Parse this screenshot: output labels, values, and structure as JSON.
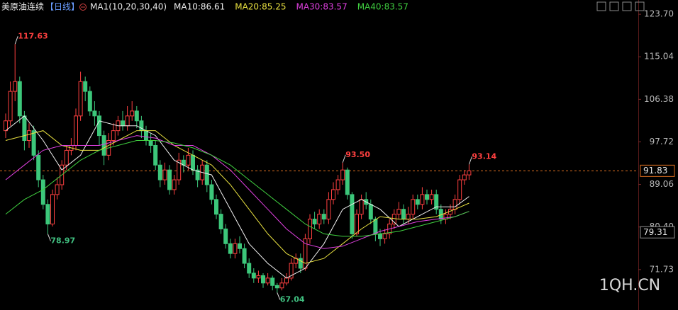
{
  "chart_data": {
    "type": "candlestick",
    "title": "美原油连续",
    "period": "【日线】",
    "indicator": "MA1(10,20,30,40)",
    "watermark": "1QH.CN",
    "ylim": [
      63.5,
      126.6
    ],
    "yticks": [
      {
        "value": 123.7,
        "label": "123.70"
      },
      115.04,
      106.38,
      97.72,
      89.06,
      {
        "value": 80.4,
        "label": "80.40"
      },
      71.73
    ],
    "up_color": "#ff4040",
    "down_color": "#3cc77a",
    "ohlc": [
      [
        100,
        103.5,
        98.5,
        102
      ],
      [
        102,
        110,
        101,
        108
      ],
      [
        108,
        117.63,
        106,
        110
      ],
      [
        110,
        111,
        101.5,
        103
      ],
      [
        103,
        104,
        96,
        98
      ],
      [
        98,
        101.5,
        96.5,
        100
      ],
      [
        100,
        101,
        94,
        95
      ],
      [
        95,
        96,
        88.5,
        90
      ],
      [
        90,
        91,
        84,
        85
      ],
      [
        85,
        86,
        78.97,
        81
      ],
      [
        81,
        88,
        80.5,
        87
      ],
      [
        87,
        90.5,
        86,
        89
      ],
      [
        89,
        94,
        88,
        93
      ],
      [
        93,
        97,
        92,
        96
      ],
      [
        96,
        98.5,
        95,
        97
      ],
      [
        97,
        104.5,
        96,
        103
      ],
      [
        103,
        112,
        102,
        110
      ],
      [
        110,
        111,
        106,
        108
      ],
      [
        108,
        109,
        103,
        104
      ],
      [
        104,
        106,
        101,
        103
      ],
      [
        103,
        104,
        97,
        99
      ],
      [
        99,
        100,
        93,
        95
      ],
      [
        95,
        99.5,
        94,
        98
      ],
      [
        98,
        101.5,
        97,
        100
      ],
      [
        100,
        103,
        99,
        102
      ],
      [
        102,
        104,
        100,
        101
      ],
      [
        101,
        105,
        100,
        103
      ],
      [
        103,
        106,
        102,
        104
      ],
      [
        104,
        105,
        100.5,
        102
      ],
      [
        102,
        103,
        98.5,
        100
      ],
      [
        100,
        101,
        97,
        98
      ],
      [
        98,
        99.5,
        95.5,
        97
      ],
      [
        97,
        98,
        92,
        93
      ],
      [
        93,
        94,
        88.5,
        90
      ],
      [
        90,
        93.5,
        89,
        92
      ],
      [
        92,
        93,
        87,
        88
      ],
      [
        88,
        91,
        87,
        90
      ],
      [
        90,
        95.5,
        89,
        94
      ],
      [
        94,
        95,
        91.5,
        93
      ],
      [
        93,
        96.5,
        92,
        95
      ],
      [
        95,
        96,
        91,
        92
      ],
      [
        92,
        93,
        88.5,
        90
      ],
      [
        90,
        94,
        89,
        93
      ],
      [
        93,
        94,
        87.5,
        89
      ],
      [
        89,
        90,
        85,
        86
      ],
      [
        86,
        87,
        82,
        83
      ],
      [
        83,
        84,
        79,
        80
      ],
      [
        80,
        81,
        76,
        77
      ],
      [
        77,
        78,
        74,
        75
      ],
      [
        75,
        78,
        74,
        77
      ],
      [
        77,
        78.5,
        75,
        76
      ],
      [
        76,
        77,
        72,
        73
      ],
      [
        73,
        74,
        70,
        71
      ],
      [
        71,
        72,
        69,
        70
      ],
      [
        70,
        71.5,
        69,
        70.5
      ],
      [
        70.5,
        71,
        68,
        69
      ],
      [
        69,
        71,
        68.5,
        70
      ],
      [
        70,
        70.5,
        67.5,
        68.5
      ],
      [
        68.5,
        69,
        67.04,
        68
      ],
      [
        68,
        70,
        67.5,
        69
      ],
      [
        69,
        71,
        68.5,
        70
      ],
      [
        70,
        74,
        69.5,
        73
      ],
      [
        73,
        75,
        72,
        74
      ],
      [
        74,
        75,
        71,
        72
      ],
      [
        72,
        79,
        71.5,
        78
      ],
      [
        78,
        83,
        77,
        82
      ],
      [
        82,
        83.5,
        80,
        81
      ],
      [
        81,
        84,
        80,
        83
      ],
      [
        83,
        84,
        81,
        82
      ],
      [
        82,
        87.5,
        81,
        86
      ],
      [
        86,
        89.5,
        85,
        88
      ],
      [
        88,
        91,
        87,
        90
      ],
      [
        90,
        93.5,
        89,
        92
      ],
      [
        92,
        92.5,
        86,
        87
      ],
      [
        87,
        87.5,
        78,
        79
      ],
      [
        79,
        84,
        78.5,
        83
      ],
      [
        83,
        87,
        82,
        86
      ],
      [
        86,
        87.5,
        84,
        85
      ],
      [
        85,
        86,
        81,
        82
      ],
      [
        82,
        82.5,
        77.5,
        79
      ],
      [
        79,
        80,
        76.5,
        78
      ],
      [
        78,
        80,
        77,
        79
      ],
      [
        79,
        82,
        78,
        81
      ],
      [
        81,
        84,
        80,
        83
      ],
      [
        83,
        85.5,
        82,
        84
      ],
      [
        84,
        85,
        81,
        82
      ],
      [
        82,
        84.5,
        81,
        83
      ],
      [
        83,
        87,
        82,
        86
      ],
      [
        86,
        87,
        84,
        85
      ],
      [
        85,
        88.5,
        84,
        87
      ],
      [
        87,
        88,
        85,
        86
      ],
      [
        86,
        88,
        85,
        87
      ],
      [
        87,
        88,
        83,
        84
      ],
      [
        84,
        85,
        81,
        82
      ],
      [
        82,
        84,
        81,
        83
      ],
      [
        83,
        85,
        82,
        84
      ],
      [
        84,
        87,
        83,
        86
      ],
      [
        86,
        91,
        85,
        90
      ],
      [
        90,
        92,
        89,
        91
      ],
      [
        91,
        93.14,
        90,
        91.83
      ]
    ],
    "extreme_labels": [
      {
        "value": 117.63,
        "label": "117.63",
        "x": 2
      },
      {
        "value": 78.97,
        "label": "78.97",
        "x": 9
      },
      {
        "value": 67.04,
        "label": "67.04",
        "x": 58
      },
      {
        "value": 93.5,
        "label": "93.50",
        "x": 72
      },
      {
        "value": 93.14,
        "label": "93.14",
        "x": 99
      }
    ],
    "ma_x": [
      0,
      4,
      8,
      12,
      16,
      20,
      24,
      28,
      32,
      36,
      40,
      44,
      48,
      52,
      56,
      60,
      64,
      68,
      72,
      76,
      80,
      84,
      88,
      92,
      96,
      99
    ],
    "series": [
      {
        "name": "MA10:86.61",
        "color": "#f0f0f0",
        "values": [
          100,
          103,
          98,
          92,
          95,
          102,
          101,
          101,
          99,
          94,
          92,
          91,
          84,
          77,
          73,
          70,
          72,
          77,
          84,
          86,
          84,
          80.5,
          82.5,
          84.5,
          84.5,
          86.61
        ]
      },
      {
        "name": "MA20:85.25",
        "color": "#e8e040",
        "values": [
          98,
          99,
          100,
          97,
          96,
          96,
          98,
          100,
          100,
          97,
          95,
          93,
          89,
          84,
          79,
          75,
          73,
          74,
          77,
          80,
          82.5,
          82,
          82,
          82.5,
          84,
          85.25
        ]
      },
      {
        "name": "MA30:83.57",
        "color": "#e040e0",
        "values": [
          90,
          93,
          96,
          97,
          97,
          97,
          98,
          99,
          98.5,
          97,
          97,
          95,
          92,
          88,
          84,
          80,
          77,
          76,
          76.5,
          78,
          79.5,
          80.5,
          81.5,
          82,
          82.5,
          83.57
        ]
      },
      {
        "name": "MA40:83.57",
        "color": "#40d040",
        "values": [
          83,
          86,
          88,
          91,
          94,
          96,
          97,
          98,
          98,
          97.5,
          96.5,
          95,
          93,
          90,
          87,
          84,
          81,
          79,
          78.5,
          78.5,
          79,
          79.5,
          80.5,
          81.5,
          82.5,
          83.57
        ]
      }
    ],
    "price_markers": [
      {
        "value": 91.83,
        "color": "#e07020",
        "dashed": true
      },
      {
        "value": 79.31,
        "color": "#909090",
        "dashed": false
      }
    ]
  }
}
